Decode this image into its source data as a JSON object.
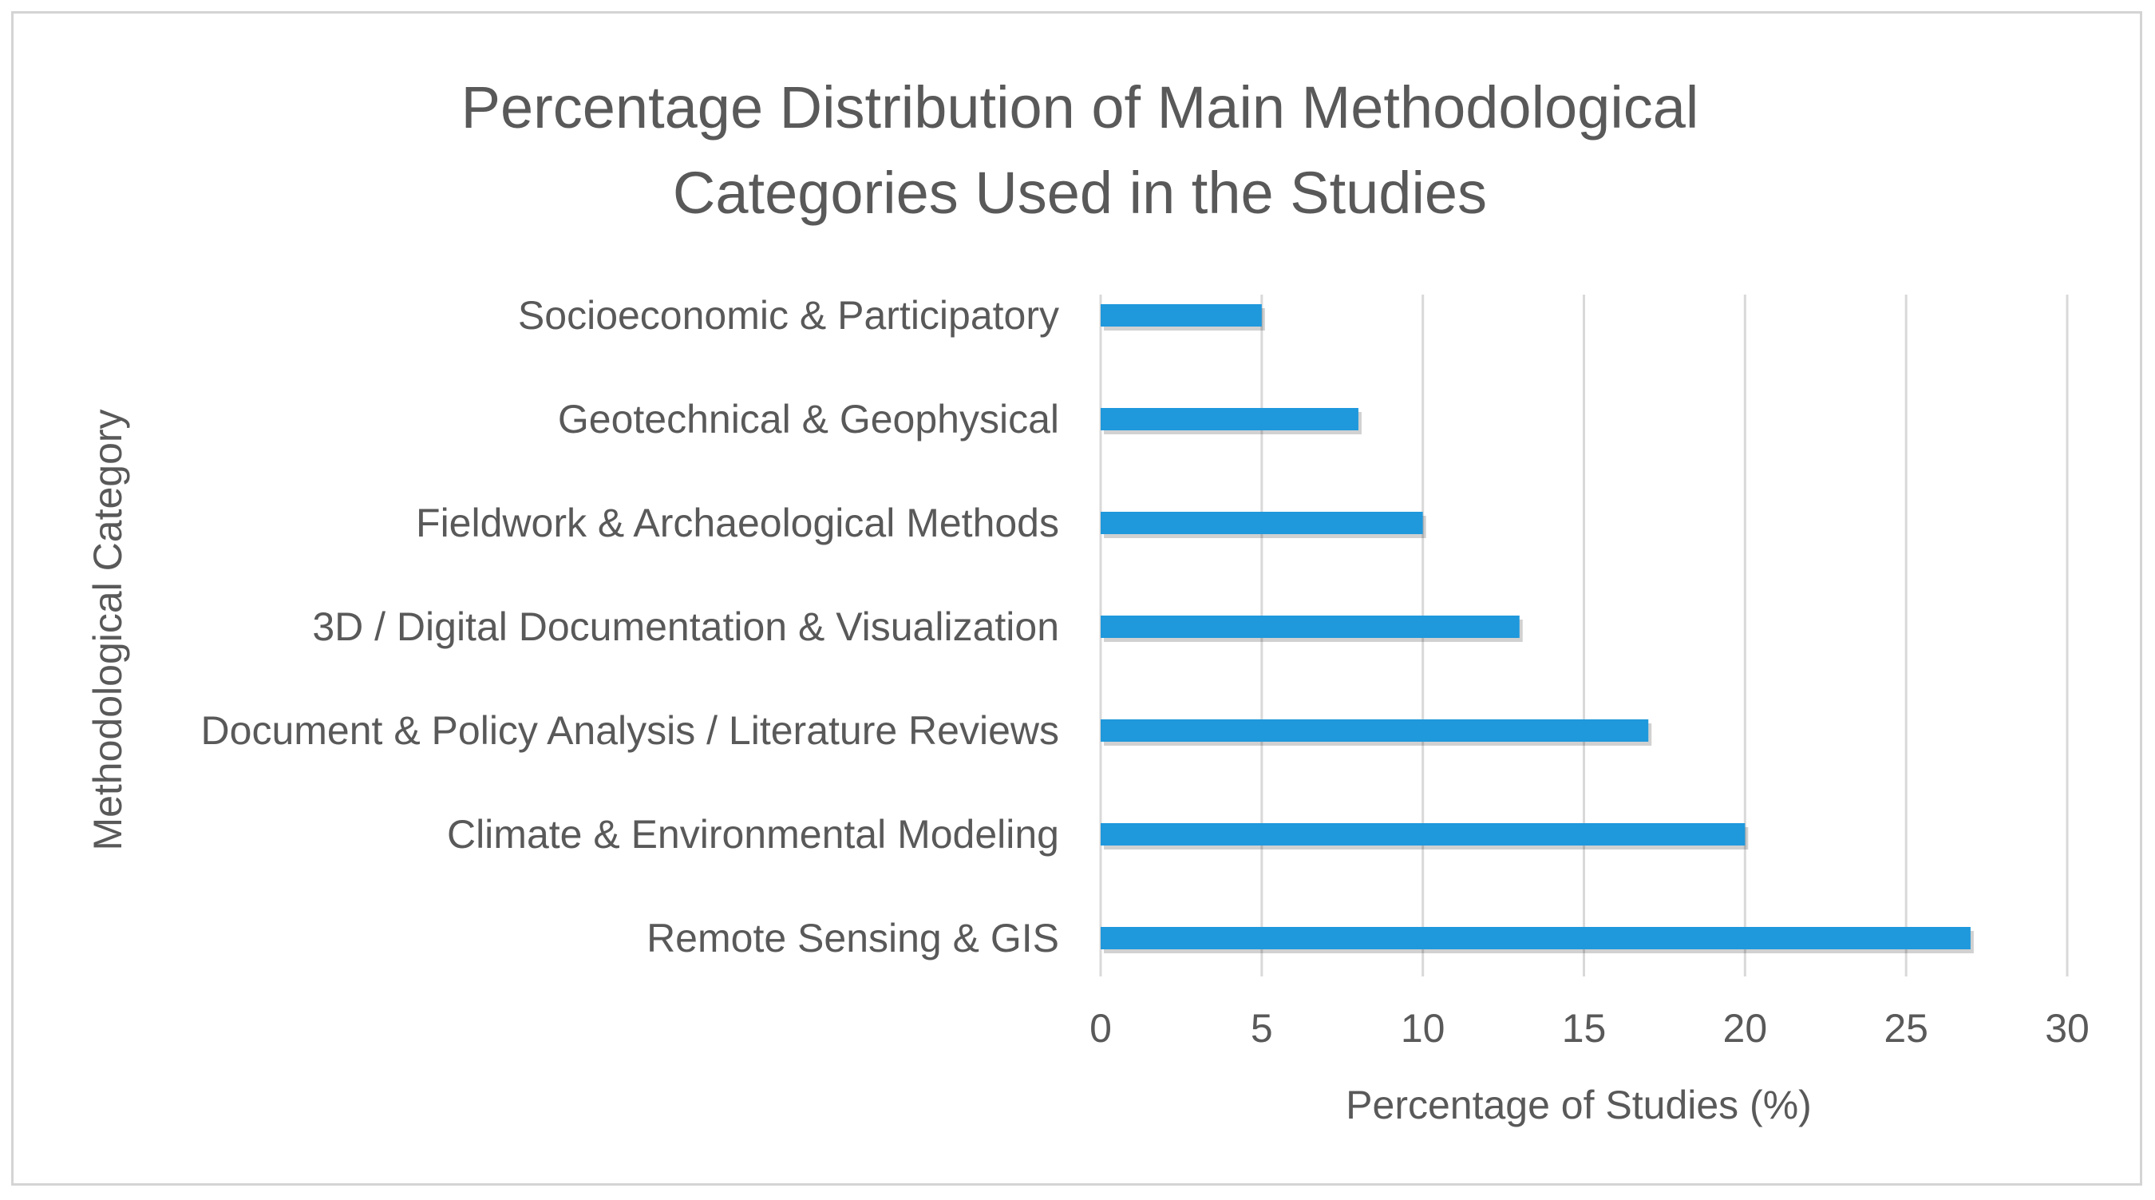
{
  "chart_data": {
    "type": "bar",
    "orientation": "horizontal",
    "title_lines": [
      "Percentage Distribution of Main Methodological",
      "Categories Used in the Studies"
    ],
    "xlabel": "Percentage of Studies (%)",
    "ylabel": "Methodological Category",
    "categories": [
      "Socioeconomic & Participatory",
      "Geotechnical & Geophysical",
      "Fieldwork & Archaeological Methods",
      "3D / Digital Documentation & Visualization",
      "Document & Policy Analysis / Literature Reviews",
      "Climate & Environmental Modeling",
      "Remote Sensing & GIS"
    ],
    "values": [
      5,
      8,
      10,
      13,
      17,
      20,
      27
    ],
    "xlim": [
      0,
      30
    ],
    "xticks": [
      "0",
      "5",
      "10",
      "15",
      "20",
      "25",
      "30"
    ],
    "grid": "vertical",
    "legend": "none",
    "bar_color": "#1f98dc",
    "grid_color": "#d9d9d9",
    "text_color": "#595959"
  }
}
